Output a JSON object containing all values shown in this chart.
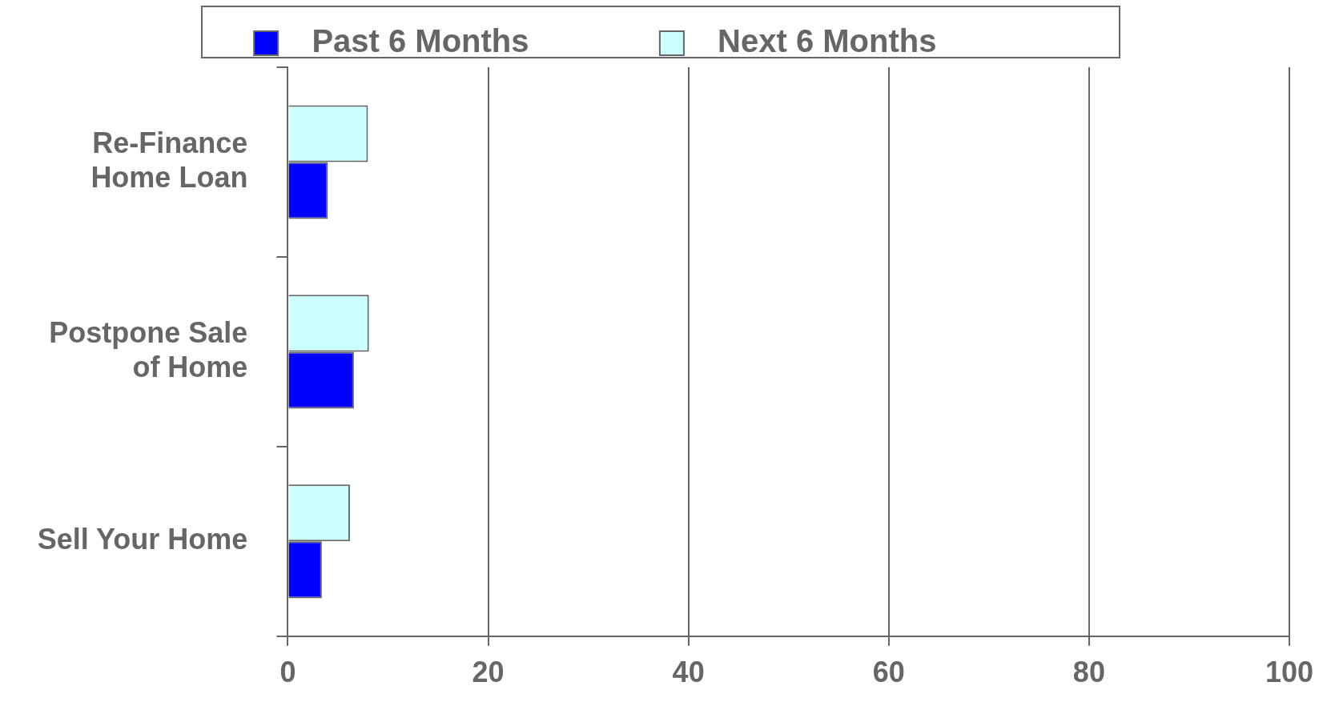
{
  "chart_data": {
    "type": "bar",
    "orientation": "horizontal",
    "categories": [
      "Re-Finance Home Loan",
      "Postpone Sale of Home",
      "Sell Your Home"
    ],
    "series": [
      {
        "name": "Past 6 Months",
        "color": "#0000ff",
        "values": [
          4.0,
          6.6,
          3.4
        ]
      },
      {
        "name": "Next 6 Months",
        "color": "#ccffff",
        "values": [
          8.0,
          8.1,
          6.2
        ]
      }
    ],
    "xlim": [
      0,
      100
    ],
    "xticks": [
      0,
      20,
      40,
      60,
      80,
      100
    ],
    "grid": "x",
    "legend": "top"
  }
}
